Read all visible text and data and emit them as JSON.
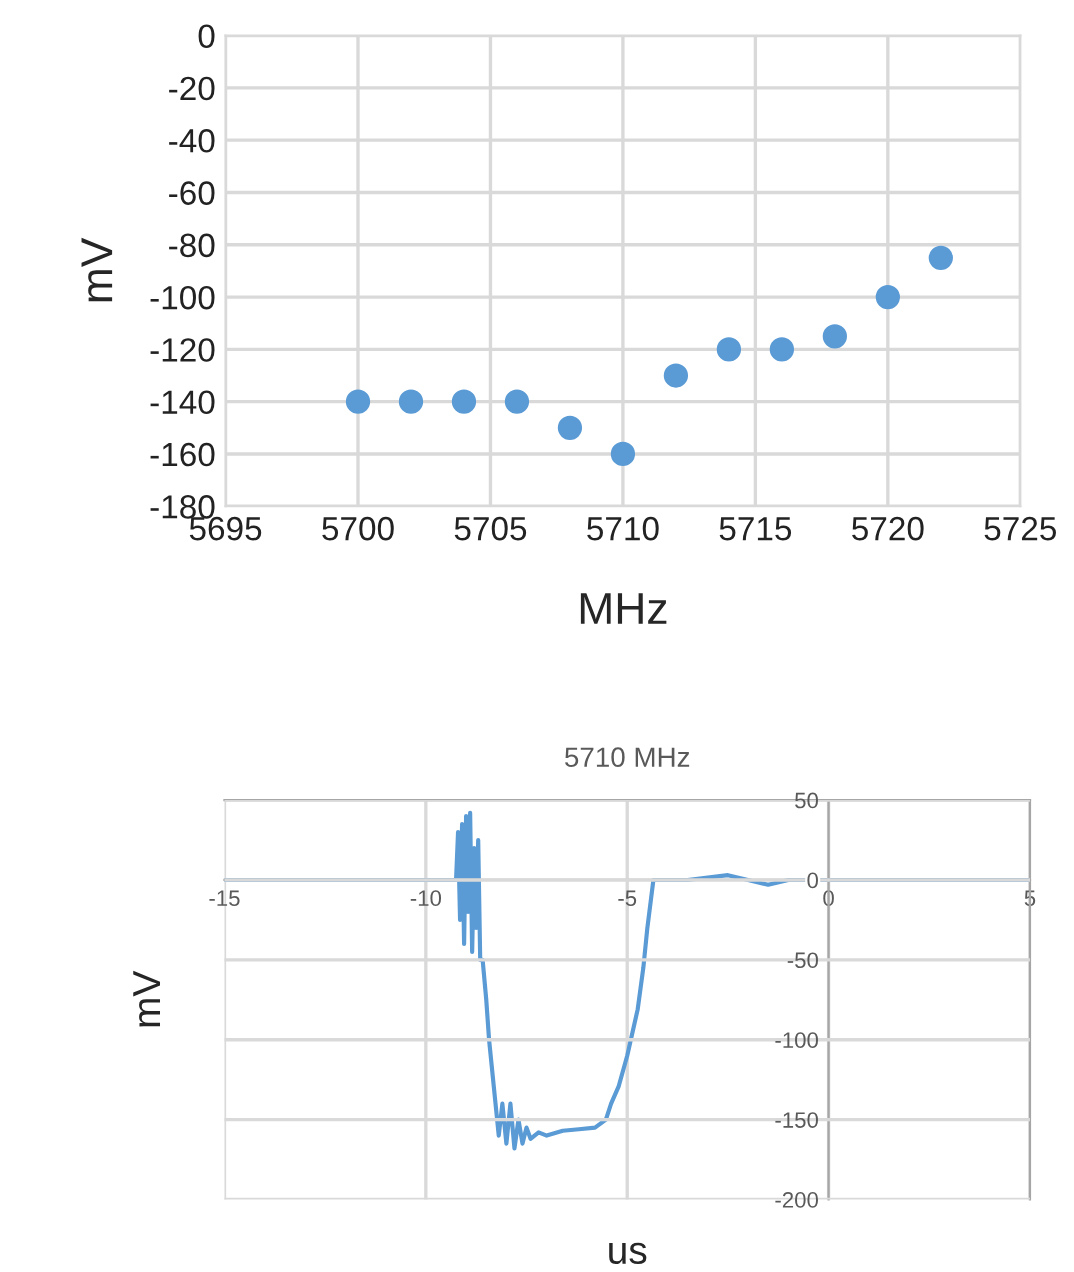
{
  "chart_data": [
    {
      "type": "scatter",
      "xlabel": "MHz",
      "ylabel": "mV",
      "color": "#5b9bd5",
      "marker": "circle",
      "grid": true,
      "x": [
        5700,
        5702,
        5704,
        5706,
        5708,
        5710,
        5712,
        5714,
        5716,
        5718,
        5720,
        5722
      ],
      "values": [
        -140,
        -140,
        -140,
        -140,
        -150,
        -160,
        -130,
        -120,
        -120,
        -115,
        -100,
        -85
      ],
      "xlim": [
        5695,
        5725
      ],
      "xticks": [
        5695,
        5700,
        5705,
        5710,
        5715,
        5720,
        5725
      ],
      "ylim": [
        -180,
        0
      ],
      "yticks": [
        -180,
        -160,
        -140,
        -120,
        -100,
        -80,
        -60,
        -40,
        -20,
        0
      ]
    },
    {
      "type": "line",
      "title": "5710 MHz",
      "xlabel": "us",
      "ylabel": "mV",
      "color": "#5b9bd5",
      "grid": true,
      "x": [
        -15,
        -12,
        -9.3,
        -9.25,
        -9.2,
        -9.15,
        -9.1,
        -9.05,
        -9.0,
        -8.95,
        -8.9,
        -8.85,
        -8.8,
        -8.75,
        -8.7,
        -8.65,
        -8.59,
        -8.5,
        -8.43,
        -8.35,
        -8.27,
        -8.19,
        -8.1,
        -8.0,
        -7.9,
        -7.8,
        -7.7,
        -7.6,
        -7.5,
        -7.4,
        -7.2,
        -7.0,
        -6.6,
        -6.2,
        -5.8,
        -5.53,
        -5.4,
        -5.21,
        -5.0,
        -4.74,
        -4.6,
        -4.5,
        -4.35,
        -4.0,
        -3.5,
        -2.5,
        -2.0,
        -1.5,
        -1.0,
        0,
        2,
        4,
        5
      ],
      "values": [
        0,
        0,
        0,
        0,
        30,
        -25,
        35,
        -40,
        40,
        -20,
        42,
        -45,
        20,
        -30,
        25,
        -50,
        -50,
        -75,
        -100,
        -120,
        -140,
        -160,
        -140,
        -165,
        -140,
        -168,
        -150,
        -165,
        -155,
        -162,
        -158,
        -160,
        -157,
        -156,
        -155,
        -150,
        -140,
        -129,
        -110,
        -81,
        -55,
        -30,
        0,
        0,
        0,
        3,
        0,
        -3,
        0,
        0,
        0,
        0,
        0
      ],
      "xlim": [
        -15,
        5
      ],
      "xticks": [
        -15,
        -10,
        -5,
        0,
        5
      ],
      "ylim": [
        -200,
        50
      ],
      "yticks": [
        -200,
        -150,
        -100,
        -50,
        0,
        50
      ]
    }
  ]
}
